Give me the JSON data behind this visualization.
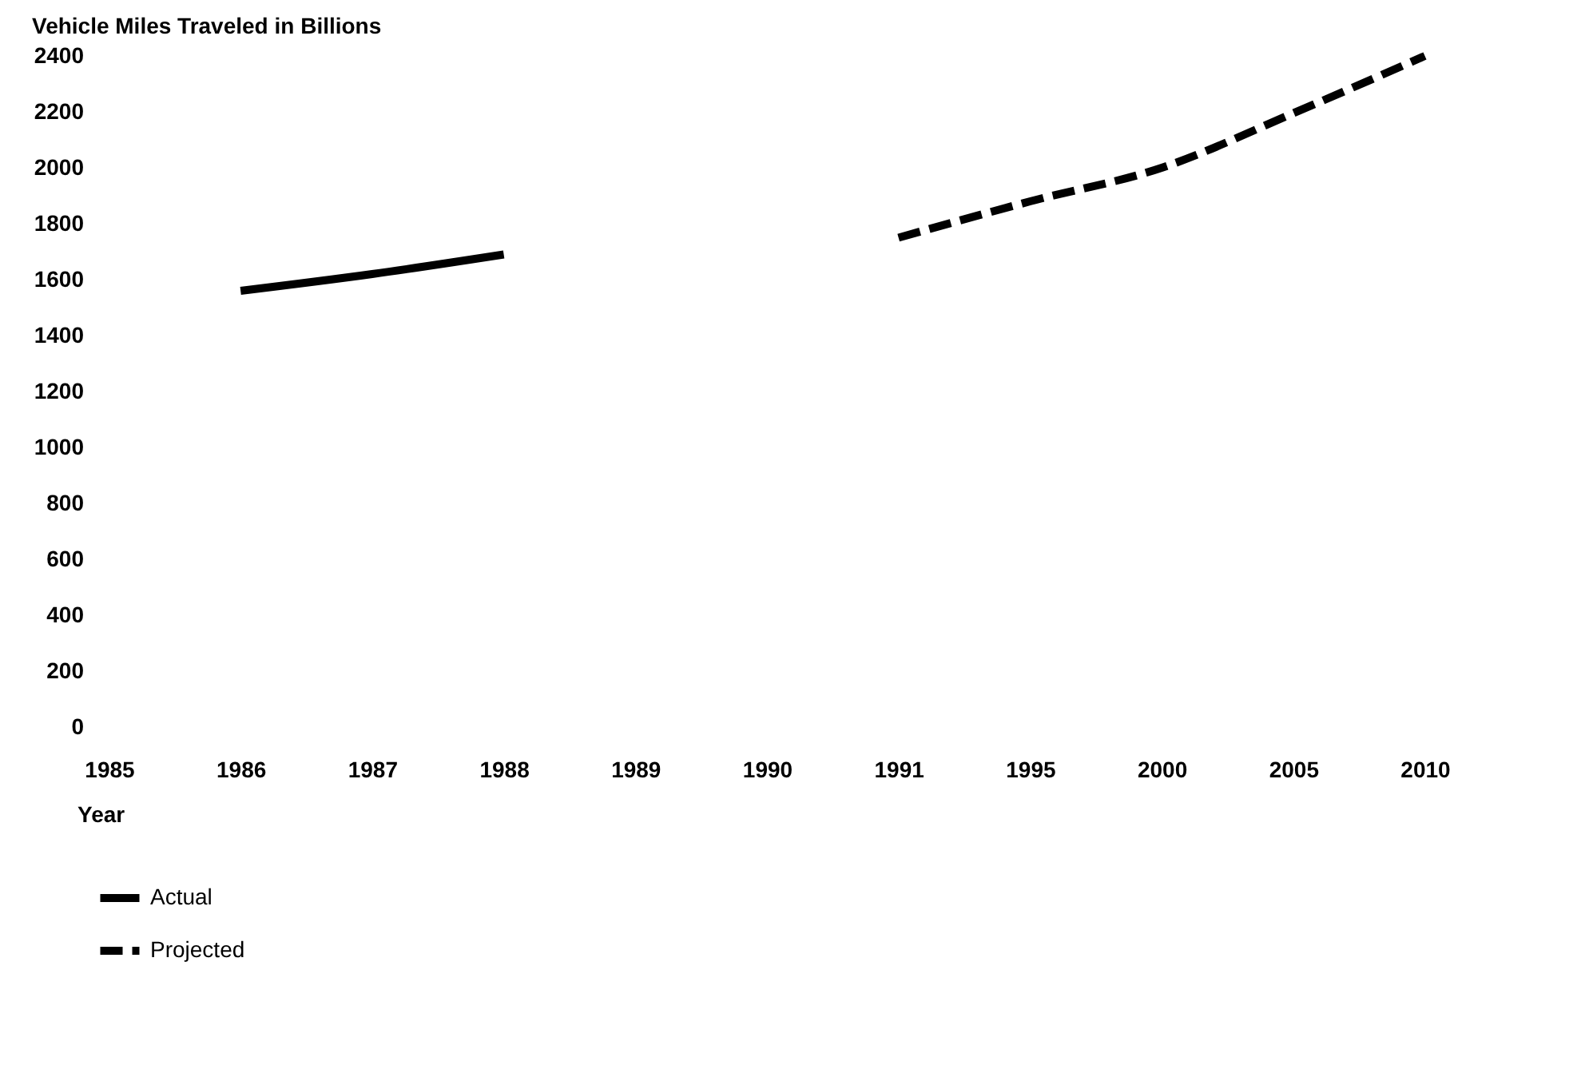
{
  "chart_data": {
    "type": "line",
    "title": "Vehicle Miles Traveled in Billions",
    "xlabel": "Year",
    "categories": [
      "1985",
      "1986",
      "1987",
      "1988",
      "1989",
      "1990",
      "1991",
      "1995",
      "2000",
      "2005",
      "2010"
    ],
    "series": [
      {
        "name": "Actual",
        "color": "#000000",
        "line_style": "solid",
        "values": [
          null,
          1560,
          1620,
          1690,
          null,
          null,
          null,
          null,
          null,
          null,
          null
        ]
      },
      {
        "name": "Projected",
        "color": "#000000",
        "line_style": "dashed",
        "values": [
          null,
          null,
          null,
          null,
          null,
          null,
          1750,
          1880,
          2000,
          2195,
          2400
        ]
      }
    ],
    "ylim": [
      0,
      2400
    ],
    "yticks": [
      0,
      200,
      400,
      600,
      800,
      1000,
      1200,
      1400,
      1600,
      1800,
      2000,
      2200,
      2400
    ],
    "grid": false,
    "legend": "bottom left",
    "marker": "none"
  }
}
